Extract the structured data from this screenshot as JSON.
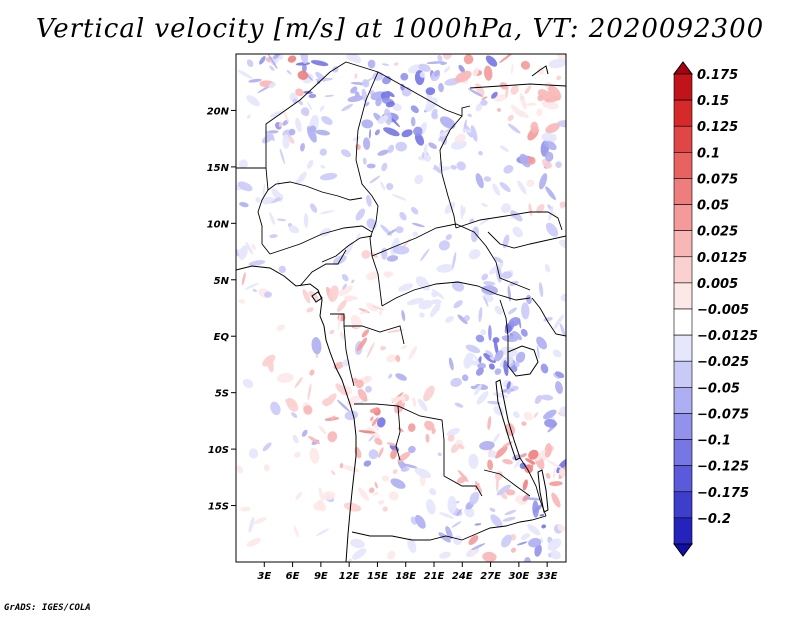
{
  "title": "Vertical velocity [m/s] at 1000hPa, VT: 2020092300",
  "credit": "GrADS: IGES/COLA",
  "map": {
    "lon_range": [
      0,
      35
    ],
    "lat_range": [
      -20,
      25
    ],
    "lon_ticks": [
      {
        "value": 3,
        "label": "3E"
      },
      {
        "value": 6,
        "label": "6E"
      },
      {
        "value": 9,
        "label": "9E"
      },
      {
        "value": 12,
        "label": "12E"
      },
      {
        "value": 15,
        "label": "15E"
      },
      {
        "value": 18,
        "label": "18E"
      },
      {
        "value": 21,
        "label": "21E"
      },
      {
        "value": 24,
        "label": "24E"
      },
      {
        "value": 27,
        "label": "27E"
      },
      {
        "value": 30,
        "label": "30E"
      },
      {
        "value": 33,
        "label": "33E"
      }
    ],
    "lat_ticks": [
      {
        "value": 20,
        "label": "20N"
      },
      {
        "value": 15,
        "label": "15N"
      },
      {
        "value": 10,
        "label": "10N"
      },
      {
        "value": 5,
        "label": "5N"
      },
      {
        "value": 0,
        "label": "EQ"
      },
      {
        "value": -5,
        "label": "5S"
      },
      {
        "value": -10,
        "label": "10S"
      },
      {
        "value": -15,
        "label": "15S"
      }
    ]
  },
  "colorbar": {
    "levels": [
      {
        "label": "0.175",
        "color": "#c0141a"
      },
      {
        "label": "0.15",
        "color": "#d42a2a"
      },
      {
        "label": "0.125",
        "color": "#e04646"
      },
      {
        "label": "0.1",
        "color": "#e86262"
      },
      {
        "label": "0.075",
        "color": "#ee7e7e"
      },
      {
        "label": "0.05",
        "color": "#f49a9a"
      },
      {
        "label": "0.025",
        "color": "#f8b6b6"
      },
      {
        "label": "0.0125",
        "color": "#fbd0d0"
      },
      {
        "label": "0.005",
        "color": "#fde8e8"
      },
      {
        "label": "−0.005",
        "color": "#ffffff"
      },
      {
        "label": "−0.0125",
        "color": "#e6e6fc"
      },
      {
        "label": "−0.025",
        "color": "#cacaf8"
      },
      {
        "label": "−0.05",
        "color": "#aeaef2"
      },
      {
        "label": "−0.075",
        "color": "#9292ec"
      },
      {
        "label": "−0.1",
        "color": "#7676e4"
      },
      {
        "label": "−0.125",
        "color": "#5a5ada"
      },
      {
        "label": "−0.175",
        "color": "#3e3ecc"
      },
      {
        "label": "−0.2",
        "color": "#2424bc"
      }
    ],
    "top_color": "#a80010",
    "bottom_color": "#1010a8"
  }
}
